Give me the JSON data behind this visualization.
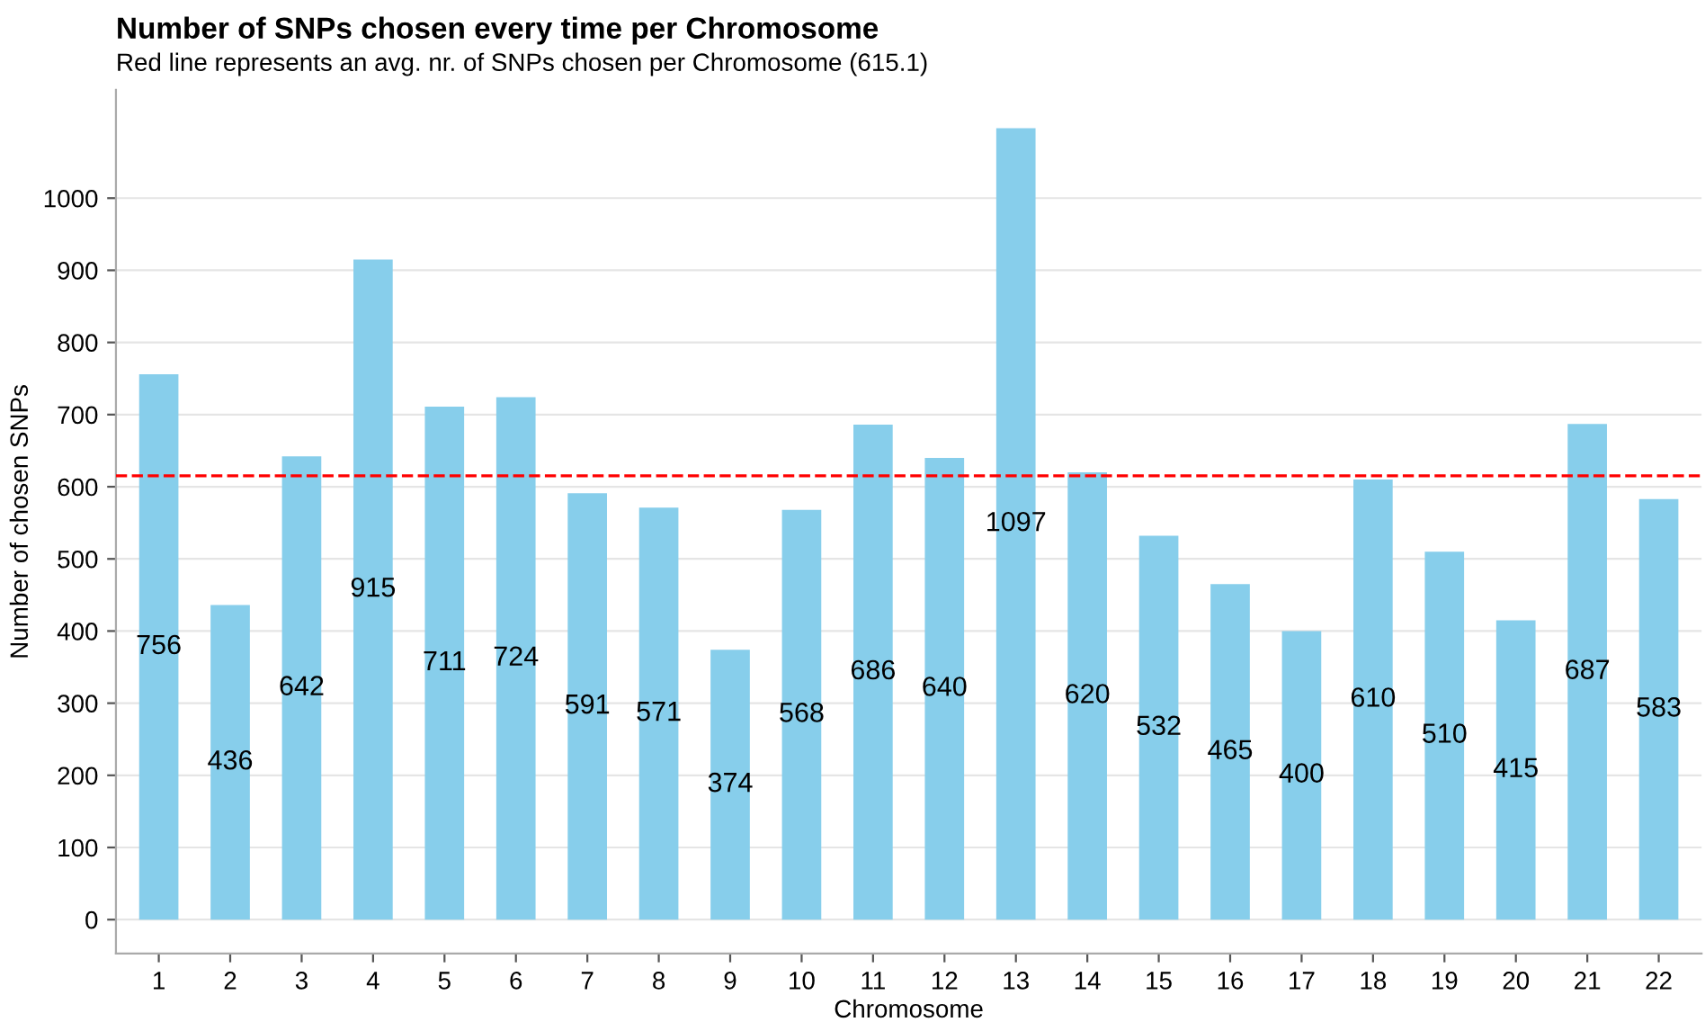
{
  "chart_data": {
    "type": "bar",
    "title": "Number of SNPs chosen every time per Chromosome",
    "subtitle": "Red line represents an avg. nr. of SNPs chosen per Chromosome (615.1)",
    "xlabel": "Chromosome",
    "ylabel": "Number of chosen SNPs",
    "categories": [
      "1",
      "2",
      "3",
      "4",
      "5",
      "6",
      "7",
      "8",
      "9",
      "10",
      "11",
      "12",
      "13",
      "14",
      "15",
      "16",
      "17",
      "18",
      "19",
      "20",
      "21",
      "22"
    ],
    "values": [
      756,
      436,
      642,
      915,
      711,
      724,
      591,
      571,
      374,
      568,
      686,
      640,
      1097,
      620,
      532,
      465,
      400,
      610,
      510,
      415,
      687,
      583
    ],
    "color": "#87ceeb",
    "ylim": [
      -47,
      1150
    ],
    "yticks": [
      0,
      100,
      200,
      300,
      400,
      500,
      600,
      700,
      800,
      900,
      1000
    ],
    "grid": "y",
    "data_labels": true,
    "ref_lines": [
      {
        "axis": "y",
        "value": 615.1,
        "color": "#ff0000",
        "line_style": "dashed"
      }
    ]
  }
}
